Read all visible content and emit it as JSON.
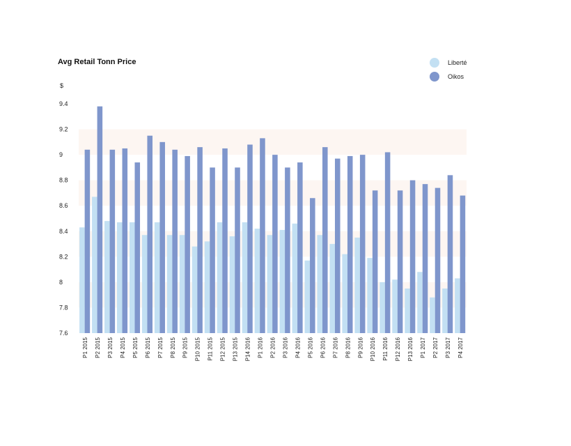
{
  "chart_data": {
    "type": "bar",
    "title": "Avg Retail Tonn Price",
    "ylabel": "$",
    "xlabel": "",
    "ylim": [
      7.6,
      9.4
    ],
    "yticks": [
      "7.6",
      "7.8",
      "8",
      "8.2",
      "8.4",
      "8.6",
      "8.8",
      "9",
      "9.2",
      "9.4"
    ],
    "legend_position": "top-right",
    "categories": [
      "P1 2015",
      "P2 2015",
      "P3 2015",
      "P4 2015",
      "P5 2015",
      "P6 2015",
      "P7 2015",
      "P8 2015",
      "P9 2015",
      "P10 2015",
      "P11 2015",
      "P12 2015",
      "P13 2015",
      "P14 2016",
      "P1 2016",
      "P2 2016",
      "P3 2016",
      "P4 2016",
      "P5 2016",
      "P6 2016",
      "P7 2016",
      "P8 2016",
      "P9 2016",
      "P10 2016",
      "P11 2016",
      "P12 2016",
      "P13 2016",
      "P1 2017",
      "P2 2017",
      "P3 2017",
      "P4 2017"
    ],
    "series": [
      {
        "name": "Liberté",
        "color": "#c3e0f3",
        "values": [
          8.43,
          8.67,
          8.48,
          8.47,
          8.47,
          8.37,
          8.47,
          8.37,
          8.37,
          8.28,
          8.32,
          8.47,
          8.36,
          8.47,
          8.42,
          8.37,
          8.41,
          8.46,
          8.17,
          8.37,
          8.3,
          8.22,
          8.35,
          8.19,
          8.0,
          8.02,
          7.95,
          8.08,
          7.88,
          7.95,
          8.03
        ]
      },
      {
        "name": "Oikos",
        "color": "#7f96cc",
        "values": [
          9.04,
          9.38,
          9.04,
          9.05,
          8.94,
          9.15,
          9.1,
          9.04,
          8.99,
          9.06,
          8.9,
          9.05,
          8.9,
          9.08,
          9.13,
          9.0,
          8.9,
          8.94,
          8.66,
          9.06,
          8.97,
          8.99,
          9.0,
          8.72,
          9.02,
          8.72,
          8.8,
          8.77,
          8.74,
          8.84,
          8.68
        ]
      }
    ],
    "band_color": "#fdf6f2"
  }
}
